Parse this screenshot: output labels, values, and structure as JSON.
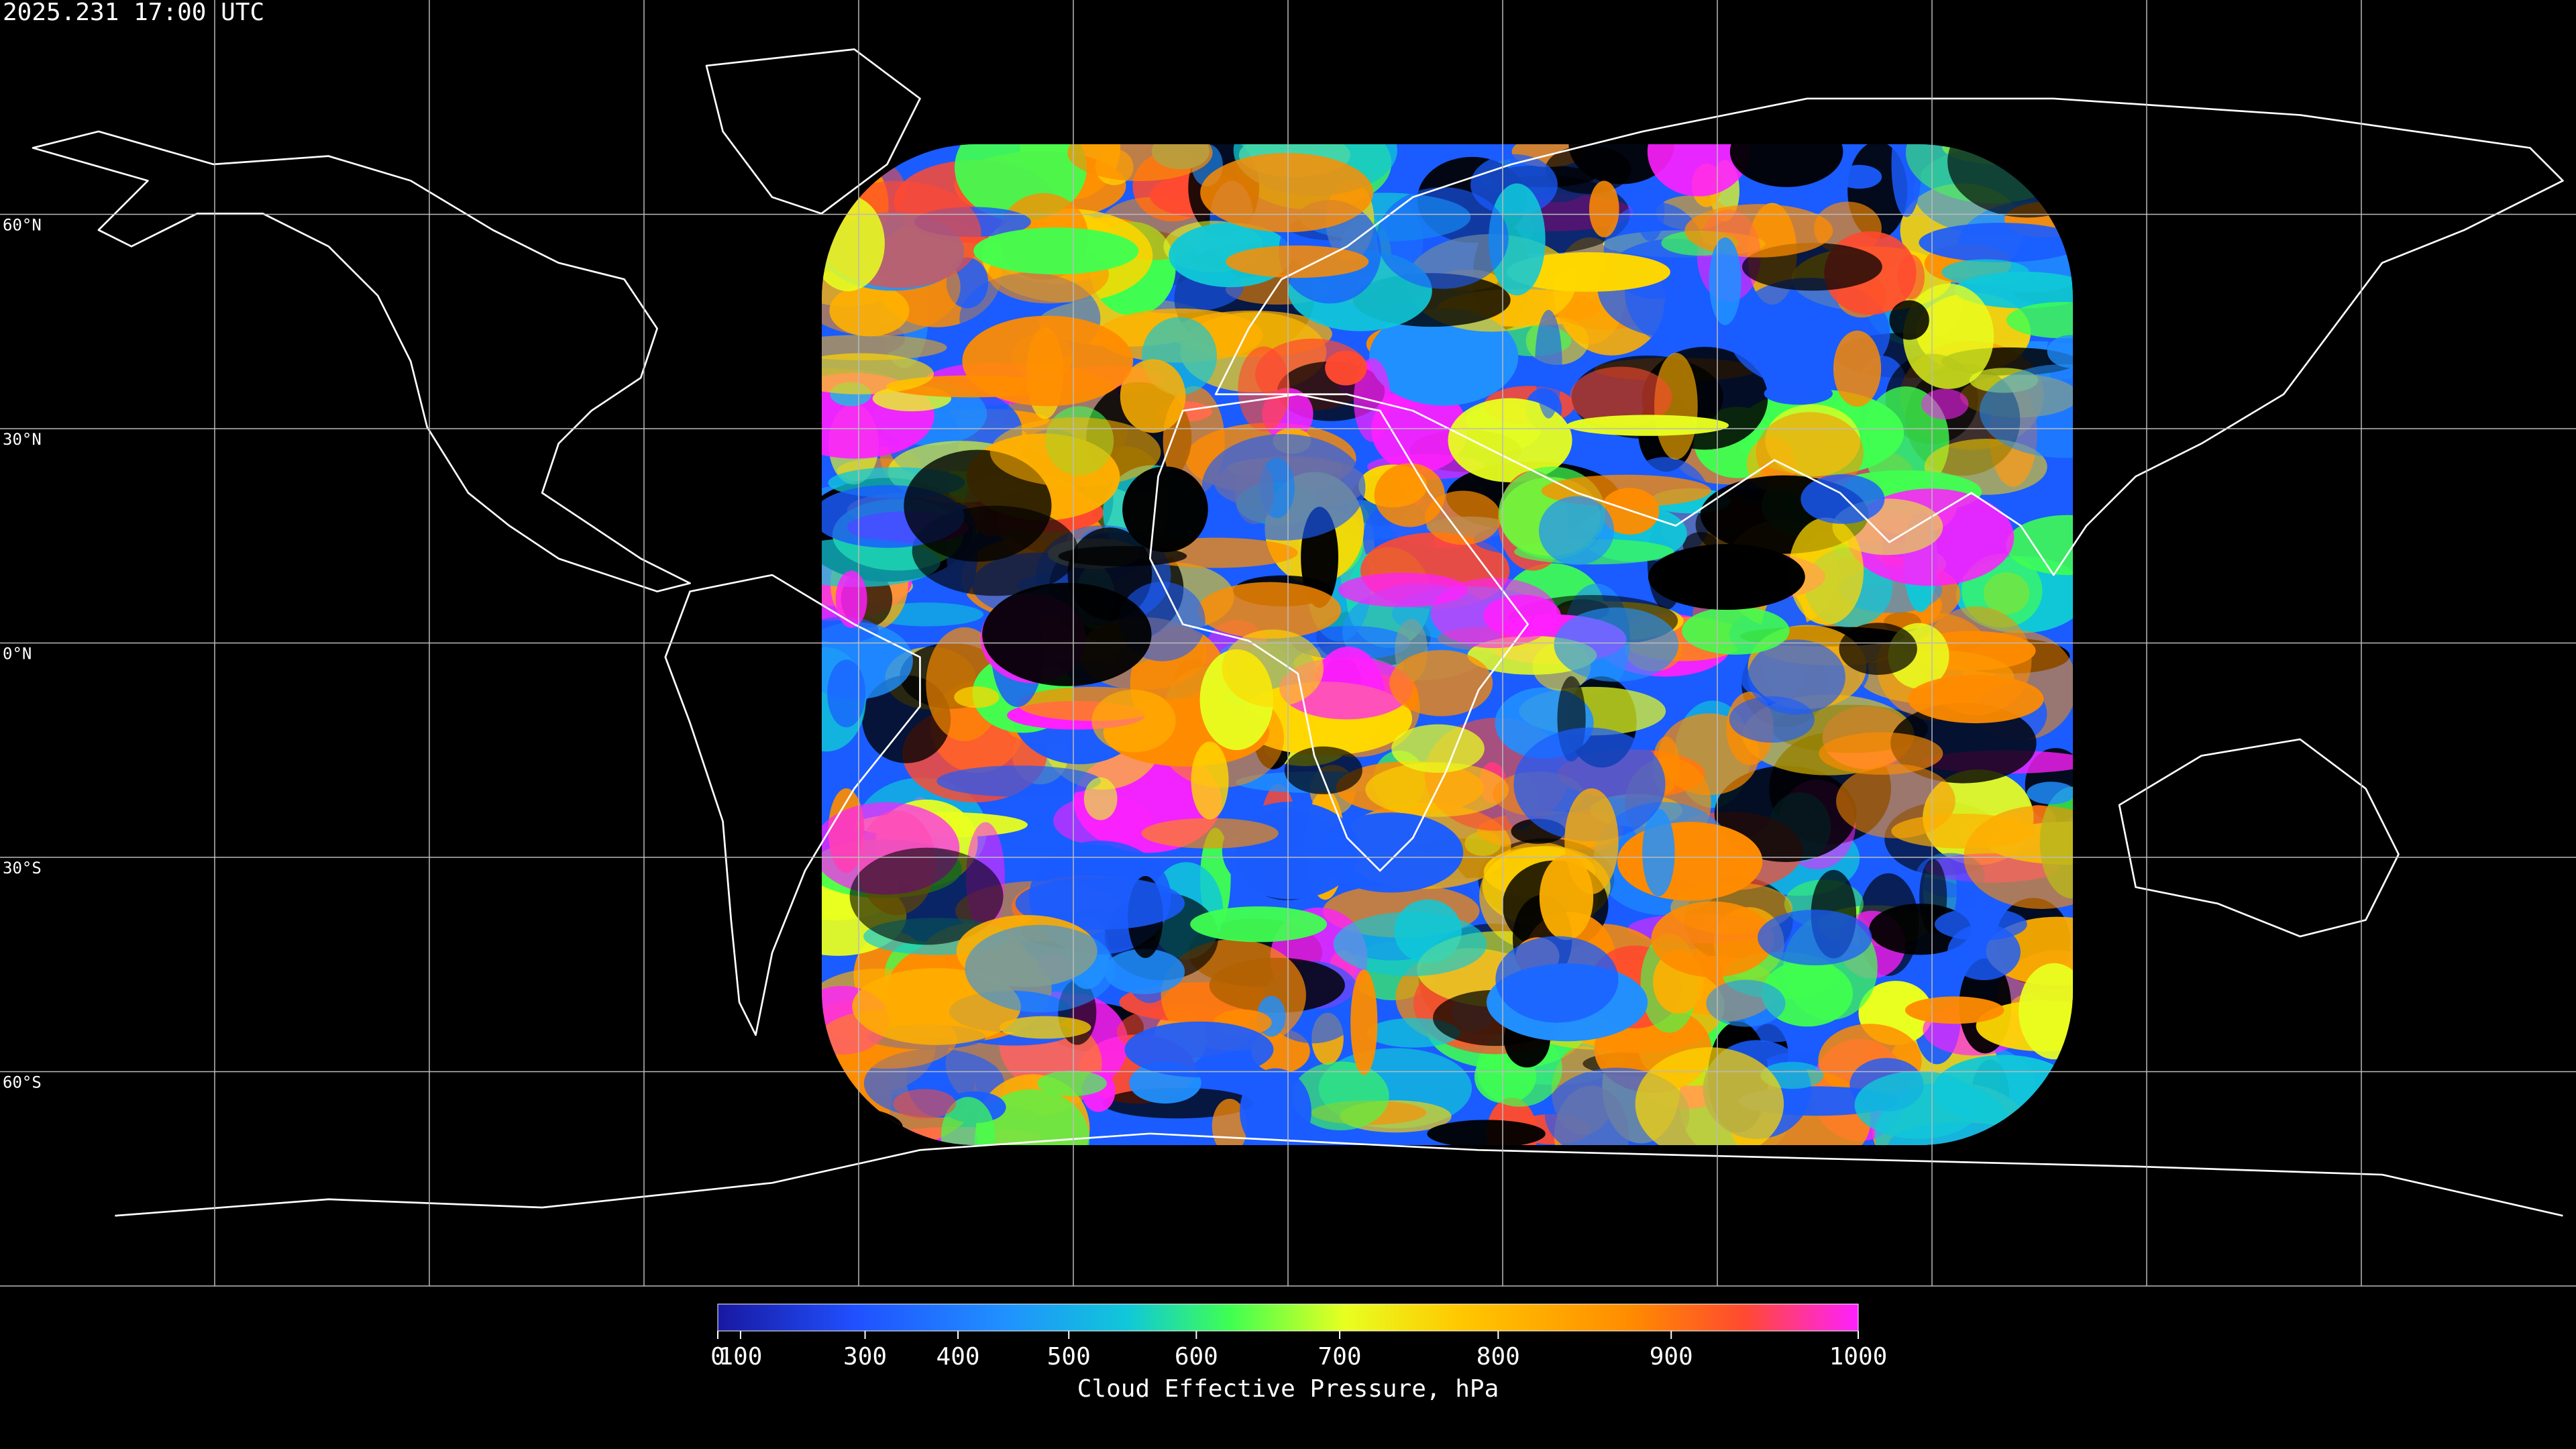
{
  "title": "2025.231 17:00 UTC",
  "map": {
    "type": "equirectangular",
    "lonlim": [
      -180,
      180
    ],
    "latlim": [
      -90,
      90
    ],
    "lat_labels": [
      {
        "value": 60,
        "label": "60°N"
      },
      {
        "value": 30,
        "label": "30°N"
      },
      {
        "value": 0,
        "label": "0°N"
      },
      {
        "value": -30,
        "label": "30°S"
      },
      {
        "value": -60,
        "label": "60°S"
      }
    ]
  },
  "colorbar": {
    "label": "Cloud Effective Pressure, hPa",
    "lim": [
      0,
      1000
    ],
    "scale": "power",
    "exponent": 1.7,
    "ticks": [
      0,
      100,
      300,
      400,
      500,
      600,
      700,
      800,
      900,
      1000
    ]
  }
}
